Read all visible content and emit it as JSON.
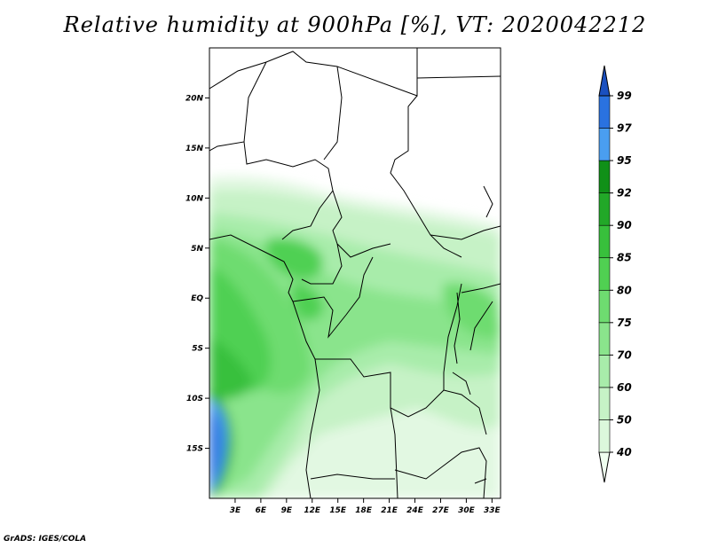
{
  "title": "Relative humidity at 900hPa [%], VT: 2020042212",
  "credit": "GrADS: IGES/COLA",
  "map": {
    "lon_range": [
      0,
      34
    ],
    "lat_range": [
      -20,
      25
    ],
    "lat_ticks": [
      {
        "value": 20,
        "label": "20N"
      },
      {
        "value": 15,
        "label": "15N"
      },
      {
        "value": 10,
        "label": "10N"
      },
      {
        "value": 5,
        "label": "5N"
      },
      {
        "value": 0,
        "label": "EQ"
      },
      {
        "value": -5,
        "label": "5S"
      },
      {
        "value": -10,
        "label": "10S"
      },
      {
        "value": -15,
        "label": "15S"
      }
    ],
    "lon_ticks": [
      {
        "value": 3,
        "label": "3E"
      },
      {
        "value": 6,
        "label": "6E"
      },
      {
        "value": 9,
        "label": "9E"
      },
      {
        "value": 12,
        "label": "12E"
      },
      {
        "value": 15,
        "label": "15E"
      },
      {
        "value": 18,
        "label": "18E"
      },
      {
        "value": 21,
        "label": "21E"
      },
      {
        "value": 24,
        "label": "24E"
      },
      {
        "value": 27,
        "label": "27E"
      },
      {
        "value": 30,
        "label": "30E"
      },
      {
        "value": 33,
        "label": "33E"
      }
    ]
  },
  "colorbar": {
    "levels": [
      "40",
      "50",
      "60",
      "70",
      "75",
      "80",
      "85",
      "90",
      "92",
      "95",
      "97",
      "99"
    ],
    "colors": [
      "#f0fff0",
      "#dcf8dc",
      "#c6f2c6",
      "#a8ecaa",
      "#8ae48c",
      "#6edc70",
      "#50d052",
      "#38c03c",
      "#22a828",
      "#109018",
      "#4a9ef0",
      "#2a72e0",
      "#1a50c0"
    ]
  }
}
